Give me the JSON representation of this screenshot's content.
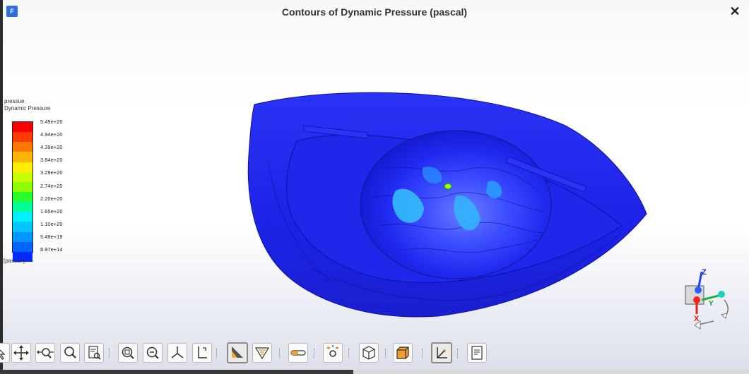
{
  "window": {
    "title": "Contours of Dynamic Pressure (pascal)",
    "close_glyph": "✕",
    "logo_glyph": "F"
  },
  "legend": {
    "quantity": "pressue",
    "name": "Dynamic Pressure",
    "unit": "[pascal ]",
    "ticks": [
      "5.49e+20",
      "4.94e+20",
      "4.39e+20",
      "3.84e+20",
      "3.29e+20",
      "2.74e+20",
      "2.20e+20",
      "1.65e+20",
      "1.10e+20",
      "5.49e+19",
      "8.97e+14"
    ],
    "colors": [
      "#ff0000",
      "#ff3c00",
      "#ff7800",
      "#ffb400",
      "#ffee00",
      "#c8ff00",
      "#8cff00",
      "#28ff28",
      "#00ff96",
      "#00f0ff",
      "#00c8ff",
      "#0096ff",
      "#0064ff",
      "#0028ff"
    ]
  },
  "triad": {
    "x": "X",
    "y": "Y",
    "z": "Z"
  },
  "toolbar": {
    "buttons": [
      {
        "name": "select-tool-button",
        "icon": "pointer"
      },
      {
        "name": "pan-button",
        "icon": "pan"
      },
      {
        "name": "rotate-zoom-button",
        "icon": "zoom-in-out"
      },
      {
        "name": "zoom-button",
        "icon": "magnifier"
      },
      {
        "name": "probe-button",
        "icon": "probe"
      },
      {
        "name": "zoom-box-button",
        "icon": "zoom-box"
      },
      {
        "name": "zoom-out-button",
        "icon": "zoom-out"
      },
      {
        "name": "axes-button",
        "icon": "axes"
      },
      {
        "name": "fit-button",
        "icon": "fit"
      },
      {
        "name": "colormap-button",
        "icon": "colormap"
      },
      {
        "name": "perspective-button",
        "icon": "triangle"
      },
      {
        "name": "transparency-button",
        "icon": "slider"
      },
      {
        "name": "lights-button",
        "icon": "gear-settings"
      },
      {
        "name": "wireframe-cube-button",
        "icon": "cube"
      },
      {
        "name": "solid-cube-button",
        "icon": "solid-cube"
      },
      {
        "name": "triad-toggle-button",
        "icon": "triad"
      },
      {
        "name": "notes-button",
        "icon": "notes"
      }
    ]
  }
}
